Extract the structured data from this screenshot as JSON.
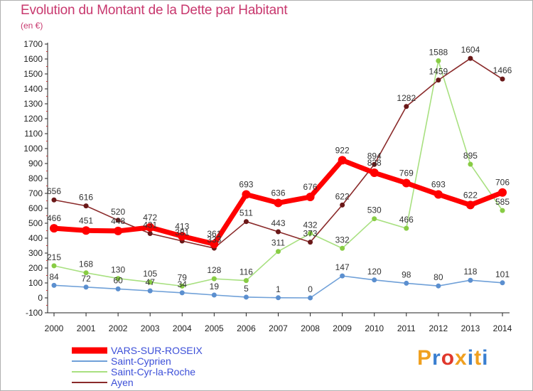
{
  "title": "Evolution du Montant de la Dette par Habitant",
  "subtitle": "(en €)",
  "brand": {
    "text": "Proxiti",
    "colors": [
      "#f0a020",
      "#3a7fd0",
      "#e0382c",
      "#f0a020",
      "#3a7fd0",
      "#f0a020",
      "#3a7fd0"
    ]
  },
  "chart_data": {
    "type": "line",
    "x": [
      "2000",
      "2001",
      "2002",
      "2003",
      "2004",
      "2005",
      "2006",
      "2007",
      "2008",
      "2009",
      "2010",
      "2011",
      "2012",
      "2013",
      "2014"
    ],
    "ylim": [
      -100,
      1700
    ],
    "yticks": [
      "-100",
      "0",
      "100",
      "200",
      "300",
      "400",
      "500",
      "600",
      "700",
      "800",
      "900",
      "1000",
      "1100",
      "1200",
      "1300",
      "1400",
      "1500",
      "1600",
      "1700"
    ],
    "grid": false,
    "legend_position": "bottom-left",
    "series": [
      {
        "name": "VARS-SUR-ROSEIX",
        "color": "#ff0000",
        "marker": "#ff0000",
        "width": 7,
        "radius": 6,
        "values": [
          466,
          451,
          448,
          472,
          413,
          361,
          693,
          636,
          676,
          922,
          838,
          769,
          693,
          622,
          706
        ],
        "labels": [
          "466",
          "451",
          "448",
          "472",
          "413",
          "361",
          "693",
          "636",
          "676",
          "922",
          "838",
          "769",
          "693",
          "622",
          "706"
        ]
      },
      {
        "name": "Saint-Cyprien",
        "color": "#6fa0d8",
        "marker": "#5b8fcf",
        "width": 1.6,
        "radius": 3.5,
        "values": [
          84,
          72,
          60,
          47,
          34,
          19,
          5,
          1,
          0,
          147,
          120,
          98,
          80,
          118,
          101
        ],
        "labels": [
          "84",
          "72",
          "60",
          "47",
          "34",
          "19",
          "5",
          "1",
          "0",
          "147",
          "120",
          "98",
          "80",
          "118",
          "101"
        ]
      },
      {
        "name": "Saint-Cyr-la-Roche",
        "color": "#a8e080",
        "marker": "#88cc44",
        "width": 1.6,
        "radius": 3.5,
        "values": [
          215,
          168,
          130,
          105,
          79,
          128,
          116,
          311,
          432,
          332,
          530,
          466,
          1588,
          895,
          585
        ],
        "labels": [
          "215",
          "168",
          "130",
          "105",
          "79",
          "128",
          "116",
          "311",
          "432",
          "332",
          "530",
          "466",
          "1588",
          "895",
          "585"
        ]
      },
      {
        "name": "Ayen",
        "color": "#8a2a2a",
        "marker": "#6a1818",
        "width": 1.6,
        "radius": 3.5,
        "values": [
          656,
          616,
          520,
          431,
          381,
          333,
          511,
          443,
          373,
          622,
          894,
          1282,
          1459,
          1604,
          1466
        ],
        "labels": [
          "656",
          "616",
          "520",
          "431",
          "381",
          "333",
          "511",
          "443",
          "373",
          "622",
          "894",
          "1282",
          "1459",
          "1604",
          "1466"
        ]
      }
    ]
  }
}
